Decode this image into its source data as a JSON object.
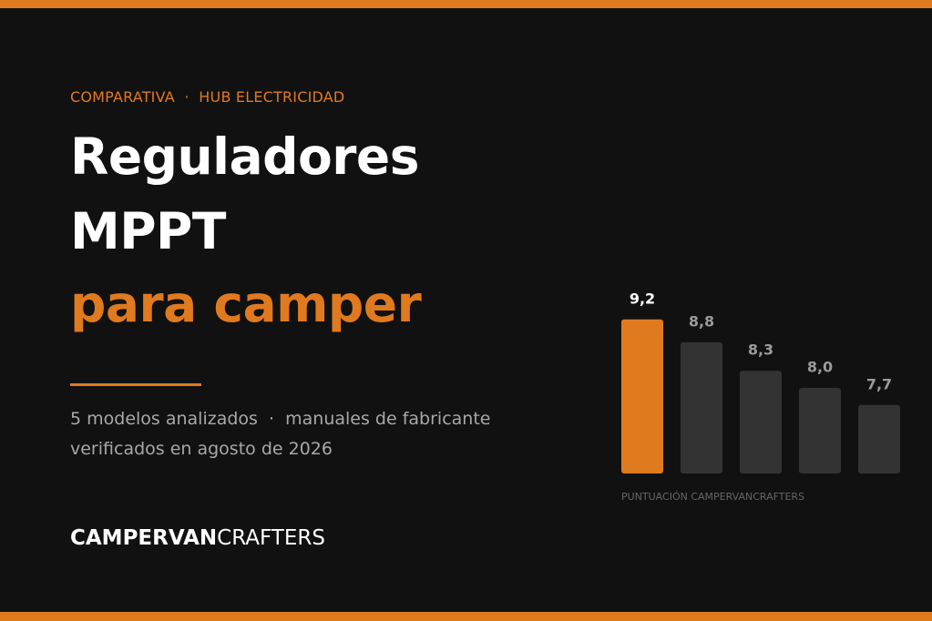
{
  "eyebrow": "COMPARATIVA  ·  HUB ELECTRICIDAD",
  "title": {
    "line1": "Reguladores",
    "line2": "MPPT",
    "line3": "para camper"
  },
  "subtitle": {
    "line1": "5 modelos analizados  ·  manuales de fabricante",
    "line2": "verificados en agosto de 2026"
  },
  "brand": {
    "bold": "CAMPERVAN",
    "light": "CRAFTERS"
  },
  "chart_data": {
    "type": "bar",
    "values": [
      9.2,
      8.8,
      8.3,
      8.0,
      7.7
    ],
    "value_labels": [
      "9,2",
      "8,8",
      "8,3",
      "8,0",
      "7,7"
    ],
    "colors": [
      "#e07a1f",
      "#333333",
      "#333333",
      "#333333",
      "#333333"
    ],
    "ylim": [
      6.5,
      9.5
    ],
    "x_label": "PUNTUACIÓN CAMPERVANCRAFTERS"
  }
}
